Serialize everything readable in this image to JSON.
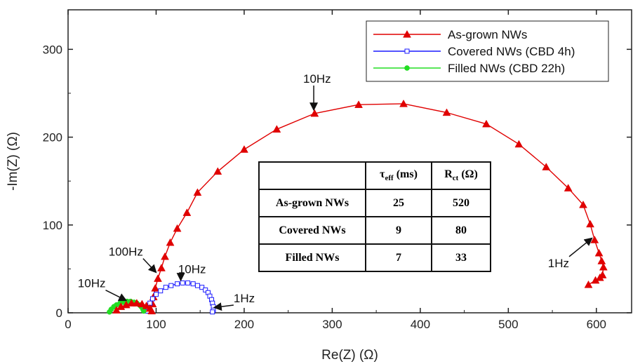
{
  "chart_data": {
    "type": "scatter",
    "xlabel": "Re(Z) (Ω)",
    "ylabel": "-Im(Z) (Ω)",
    "xlim": [
      0,
      640
    ],
    "ylim": [
      0,
      345
    ],
    "xticks": [
      0,
      100,
      200,
      300,
      400,
      500,
      600
    ],
    "yticks": [
      0,
      100,
      200,
      300
    ],
    "grid": false,
    "legend_position": "top-right",
    "series": [
      {
        "name": "As-grown NWs",
        "color": "#e00000",
        "marker": "filled-triangle",
        "points": [
          [
            591,
            32
          ],
          [
            599,
            37
          ],
          [
            604,
            40
          ],
          [
            607,
            43
          ],
          [
            608,
            52
          ],
          [
            606,
            59
          ],
          [
            603,
            68
          ],
          [
            598,
            83
          ],
          [
            593,
            101
          ],
          [
            585,
            123
          ],
          [
            568,
            142
          ],
          [
            543,
            166
          ],
          [
            512,
            192
          ],
          [
            475,
            215
          ],
          [
            430,
            228
          ],
          [
            381,
            238
          ],
          [
            330,
            237
          ],
          [
            280,
            227
          ],
          [
            237,
            209
          ],
          [
            200,
            186
          ],
          [
            170,
            161
          ],
          [
            147,
            137
          ],
          [
            135,
            114
          ],
          [
            124,
            96
          ],
          [
            116,
            80
          ],
          [
            110,
            64
          ],
          [
            106,
            51
          ],
          [
            102,
            39
          ],
          [
            99,
            28
          ],
          [
            97,
            18
          ],
          [
            96,
            10
          ]
        ]
      },
      {
        "name": "Covered NWs (CBD 4h)",
        "color": "#1a1aff",
        "marker": "open-square",
        "points": [
          [
            90,
            2
          ],
          [
            91,
            6
          ],
          [
            93,
            11
          ],
          [
            96,
            16
          ],
          [
            100,
            21
          ],
          [
            105,
            25
          ],
          [
            111,
            29
          ],
          [
            117,
            31
          ],
          [
            124,
            33
          ],
          [
            130,
            34
          ],
          [
            136,
            34
          ],
          [
            142,
            33
          ],
          [
            147,
            31
          ],
          [
            152,
            29
          ],
          [
            156,
            26
          ],
          [
            159,
            23
          ],
          [
            161,
            19
          ],
          [
            163,
            15
          ],
          [
            164,
            11
          ],
          [
            165,
            7
          ],
          [
            165,
            3
          ],
          [
            164,
            1
          ]
        ]
      },
      {
        "name": "Filled NWs (CBD 22h)",
        "color": "#22dd22",
        "marker": "filled-circle",
        "points": [
          [
            47,
            1
          ],
          [
            49,
            4
          ],
          [
            52,
            7
          ],
          [
            55,
            9
          ],
          [
            59,
            11
          ],
          [
            63,
            12
          ],
          [
            67,
            13
          ],
          [
            71,
            13
          ],
          [
            75,
            12
          ],
          [
            78,
            11
          ],
          [
            81,
            9
          ],
          [
            83,
            7
          ],
          [
            85,
            4
          ],
          [
            86,
            2
          ]
        ]
      },
      {
        "name": "",
        "color": "#e00000",
        "marker": "filled-triangle",
        "points": [
          [
            55,
            3
          ],
          [
            60,
            7
          ],
          [
            66,
            9
          ],
          [
            72,
            11
          ],
          [
            78,
            11
          ],
          [
            84,
            10
          ],
          [
            89,
            8
          ],
          [
            93,
            5
          ],
          [
            95,
            2
          ]
        ]
      }
    ],
    "annotations": [
      {
        "text": "10Hz",
        "x": 267,
        "y": 262,
        "arrow_to": [
          279,
          231
        ]
      },
      {
        "text": "1Hz",
        "x": 545,
        "y": 52,
        "arrow_to": [
          595,
          85
        ]
      },
      {
        "text": "100Hz",
        "x": 46,
        "y": 65,
        "arrow_to": [
          100,
          46
        ]
      },
      {
        "text": "10Hz",
        "x": 125,
        "y": 45,
        "arrow_to": [
          128,
          37
        ]
      },
      {
        "text": "1Hz",
        "x": 188,
        "y": 12,
        "arrow_to": [
          166,
          6
        ]
      },
      {
        "text": "10Hz",
        "x": 11,
        "y": 29,
        "arrow_to": [
          66,
          14
        ]
      }
    ],
    "table": {
      "columns": [
        "",
        "τeff (ms)",
        "Rct (Ω)"
      ],
      "rows": [
        [
          "As-grown NWs",
          "25",
          "520"
        ],
        [
          "Covered NWs",
          "9",
          "80"
        ],
        [
          "Filled NWs",
          "7",
          "33"
        ]
      ]
    }
  }
}
